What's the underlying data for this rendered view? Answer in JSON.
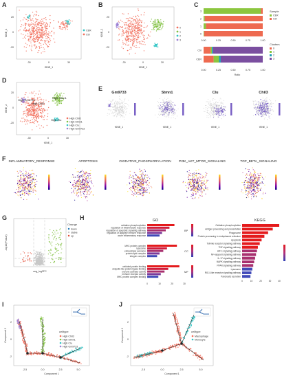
{
  "panels": {
    "A": {
      "label": "A",
      "ylabel": "tSNE_2",
      "xlabel": "tSNE_1",
      "yticks": [
        "20",
        "0",
        "-20"
      ],
      "xticks": [
        "-30",
        "0",
        "30"
      ],
      "legend": [
        "CER",
        "Ctrl"
      ],
      "colors": {
        "CER": "#2ec4c4",
        "Ctrl": "#f26d5b"
      }
    },
    "B": {
      "label": "B",
      "ylabel": "tSNE_2",
      "xlabel": "tSNE_1",
      "yticks": [
        "20",
        "0",
        "-20"
      ],
      "xticks": [
        "-30",
        "0",
        "30"
      ],
      "legend": [
        "0",
        "1",
        "2",
        "3"
      ],
      "colors": [
        "#f26d5b",
        "#7fbf3f",
        "#2ec4c4",
        "#9b7fd4"
      ]
    },
    "C": {
      "label": "C",
      "xlabel": "Ratio",
      "xticks": [
        "0.00",
        "0.25",
        "0.50",
        "0.75",
        "1.00"
      ],
      "legend_sample_title": "Sample",
      "legend_sample": [
        "CER",
        "Ctrl"
      ],
      "legend_cluster_title": "Clusters",
      "legend_cluster": [
        "0",
        "1",
        "2",
        "3"
      ],
      "sample_colors": {
        "CER": "#8cc63f",
        "Ctrl": "#ee6a50"
      },
      "cluster_colors": [
        "#ee6a50",
        "#8cc63f",
        "#1f9fb4",
        "#7b4fa0"
      ]
    },
    "D": {
      "label": "D",
      "ylabel": "tSNE_2",
      "xlabel": "tSNE_1",
      "yticks": [
        "20",
        "0",
        "-20"
      ],
      "xticks": [
        "-30",
        "0",
        "30"
      ],
      "annotations": [
        "High Gm9733",
        "High Chil3",
        "High Stmn1",
        "High Clu"
      ],
      "legend": [
        "High Chil3",
        "High Stmn1",
        "High Clu",
        "High Gm9733"
      ],
      "colors": [
        "#f26d5b",
        "#7fbf3f",
        "#2ec4c4",
        "#9b7fd4"
      ]
    },
    "E": {
      "label": "E",
      "genes": [
        "Gm9733",
        "Stmn1",
        "Clu",
        "Chil3"
      ],
      "xlabel": "tSNE_1",
      "ylabel": "tSNE_2"
    },
    "F": {
      "label": "F",
      "pathways": [
        "INFLAMMATORY_RESPONSE",
        "APOPTOSIS",
        "OXIDATIVE_PHOSPHORYLATION",
        "PI3K_AKT_MTOR_SIGNALING",
        "TGF_BETA_SIGNALING"
      ],
      "xlabel": "tSNE_1",
      "ylabel": "tSNE_2"
    },
    "G": {
      "label": "G",
      "ylabel": "-log10(Pvalue)",
      "xlabel": "avg_log2FC",
      "legend_title": "Change",
      "legend": [
        "down",
        "stable",
        "up"
      ],
      "colors": {
        "down": "#1f77b4",
        "stable": "#c8c8c8",
        "up": "#e34a33"
      }
    },
    "H": {
      "label": "H",
      "go_title": "GO",
      "kegg_title": "KEGG",
      "go_bp": [
        "oxidative phosphorylation",
        "regulation of inflammatory response",
        "regulation of apoptotic signaling pathway",
        "regulation of adaptive immune response",
        "acute inflammatory response"
      ],
      "go_cc": [
        "MHC protein complex",
        "lysosome",
        "extracellular exosome",
        "protein-lipid complex",
        "integrin complex"
      ],
      "go_mf": [
        "unfolded protein binding",
        "ubiquitin-like protein ligase binding",
        "enzyme activator activity",
        "immune receptor activity",
        "MHC protein complex binding"
      ],
      "go_tags": [
        "BP",
        "CC",
        "MF"
      ],
      "go_bp_values": [
        22,
        18,
        15,
        12,
        10
      ],
      "go_cc_values": [
        24,
        16,
        13,
        10,
        8
      ],
      "go_mf_values": [
        26,
        17,
        14,
        11,
        9
      ],
      "go_xticks": [
        "0",
        "10",
        "20",
        "30"
      ],
      "kegg_terms": [
        "Oxidative phosphorylation",
        "Antigen processing and presentation",
        "Phagosome",
        "Protein processing in endoplasmic reticulum",
        "Apoptosis",
        "Toll-like receptor signaling pathway",
        "TNF signaling pathway",
        "HIF-1 signaling pathway",
        "NF-kappa B signaling pathway",
        "IL-17 signaling pathway",
        "MAPK signaling pathway",
        "PPAR signaling pathway",
        "Lysosome",
        "RIG-I-like receptor signaling pathway",
        "Pancreatic secretion"
      ],
      "kegg_values": [
        40,
        33,
        28,
        24,
        21,
        19,
        17,
        16,
        15,
        14,
        13,
        12,
        11,
        10,
        9
      ],
      "kegg_xticks": [
        "0",
        "10",
        "20",
        "30",
        "40"
      ]
    },
    "I": {
      "label": "I",
      "ylabel": "Component 2",
      "xlabel": "Component 1",
      "xticks": [
        "-2.5",
        "0.0",
        "2.5",
        "5.0"
      ],
      "yticks": [
        "2",
        "0",
        "-2"
      ],
      "legend_title": "celltype",
      "legend": [
        "High Chil3",
        "High Stmn1",
        "High Clu",
        "High Gm9733"
      ],
      "colors": [
        "#f26d5b",
        "#7fbf3f",
        "#2ec4c4",
        "#9b7fd4"
      ]
    },
    "J": {
      "label": "J",
      "ylabel": "Component 2",
      "xlabel": "Component 1",
      "xticks": [
        "-2.5",
        "0.0",
        "2.5",
        "5.0"
      ],
      "yticks": [
        "2",
        "0",
        "-2"
      ],
      "legend_title": "celltype",
      "legend": [
        "Macrophage",
        "Monocyte"
      ],
      "colors": [
        "#f26d5b",
        "#2ec4c4"
      ]
    }
  },
  "chart_data": [
    {
      "type": "bar",
      "panel": "C-top",
      "categories": [
        "3",
        "2",
        "1",
        "0"
      ],
      "series": [
        {
          "name": "CER",
          "values": [
            0.97,
            0.02,
            0.04,
            0.01
          ]
        },
        {
          "name": "Ctrl",
          "values": [
            0.03,
            0.98,
            0.96,
            0.99
          ]
        }
      ],
      "xlabel": "Ratio",
      "xlim": [
        0,
        1
      ]
    },
    {
      "type": "bar",
      "panel": "C-bottom",
      "categories": [
        "Ctrl",
        "CER"
      ],
      "series": [
        {
          "name": "0",
          "values": [
            0.12,
            0.17
          ]
        },
        {
          "name": "1",
          "values": [
            0.02,
            0.09
          ]
        },
        {
          "name": "2",
          "values": [
            0.02,
            0.03
          ]
        },
        {
          "name": "3",
          "values": [
            0.84,
            0.71
          ]
        }
      ],
      "xlabel": "Ratio",
      "xlim": [
        0,
        1
      ]
    }
  ]
}
